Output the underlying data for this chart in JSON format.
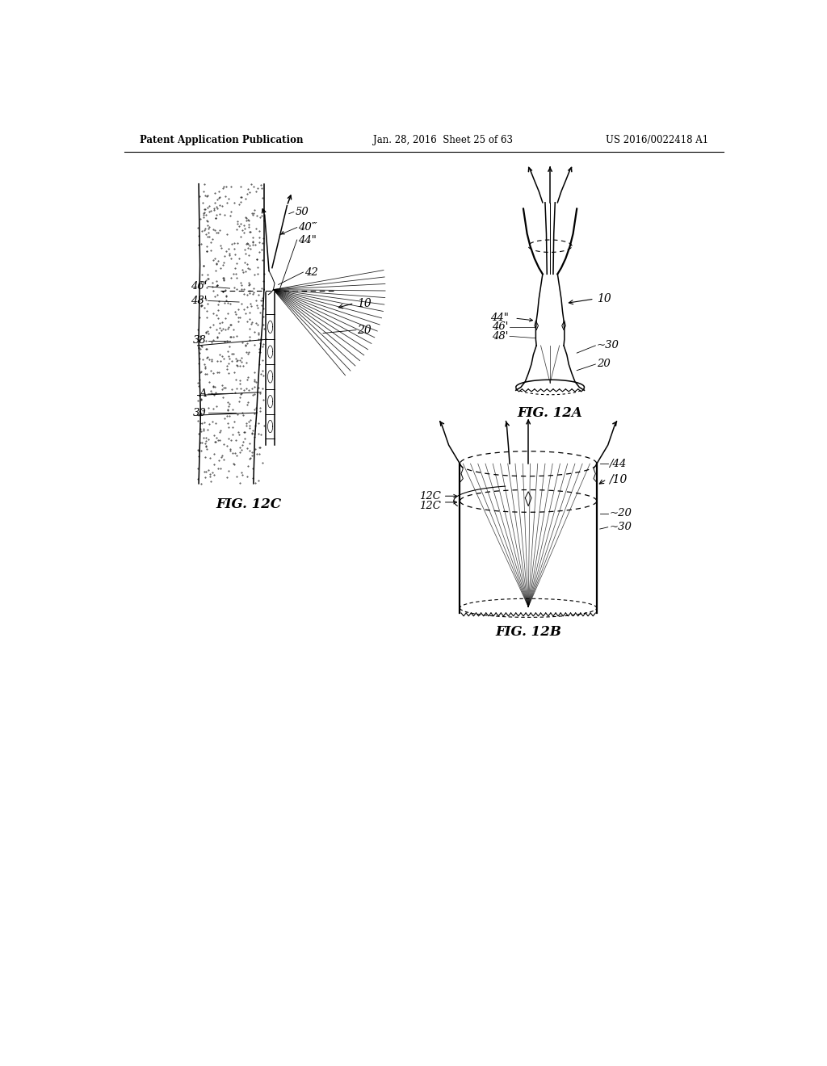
{
  "header_left": "Patent Application Publication",
  "header_center": "Jan. 28, 2016  Sheet 25 of 63",
  "header_right": "US 2016/0022418 A1",
  "fig_12c_label": "FIG. 12C",
  "fig_12a_label": "FIG. 12A",
  "fig_12b_label": "FIG. 12B",
  "background_color": "#ffffff",
  "line_color": "#000000"
}
